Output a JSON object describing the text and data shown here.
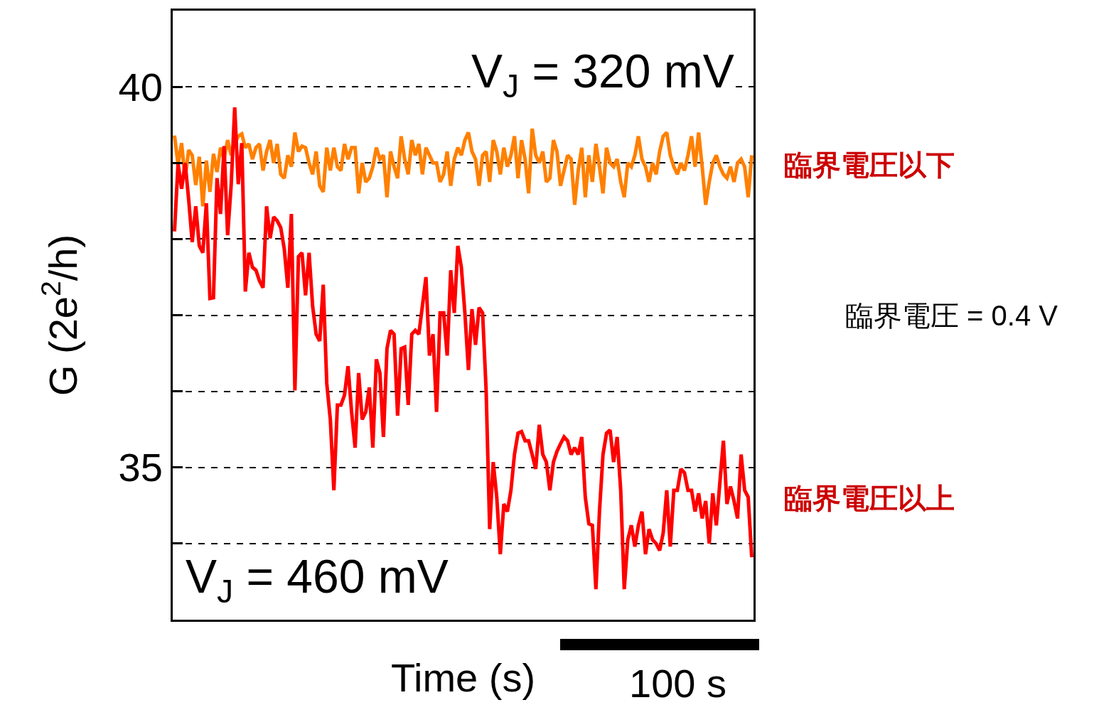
{
  "chart_data": {
    "type": "line",
    "xlabel": "Time (s)",
    "ylabel": "G (2e$^{2}$/h)",
    "categories": [
      null,
      null,
      null,
      null,
      null,
      null,
      null,
      null,
      null,
      null,
      null,
      null,
      null,
      null,
      null,
      null,
      null,
      null,
      null,
      null,
      null,
      null,
      null,
      null,
      null,
      null,
      null,
      null,
      null,
      null,
      null,
      null,
      null,
      null,
      null,
      null,
      null,
      null,
      null,
      null,
      null,
      null,
      null,
      null,
      null,
      null,
      null,
      null,
      null,
      null,
      null,
      null,
      null,
      null,
      null,
      null,
      null,
      null,
      null,
      null,
      null,
      null,
      null,
      null,
      null,
      null,
      null,
      null,
      null,
      null,
      null,
      null,
      null,
      null,
      null,
      null,
      null,
      null,
      null,
      null,
      null,
      null,
      null,
      null,
      null,
      null,
      null,
      null,
      null,
      null,
      null,
      null,
      null,
      null,
      null,
      null,
      null,
      null,
      null,
      null,
      null,
      null,
      null,
      null,
      null,
      null,
      null,
      null,
      null,
      null,
      null,
      null,
      null,
      null,
      null,
      null,
      null,
      null,
      null,
      null,
      null,
      null,
      null,
      null,
      null,
      null,
      null,
      null,
      null,
      null,
      null,
      null,
      null,
      null,
      null,
      null,
      null,
      null,
      null,
      null,
      null,
      null,
      null,
      null,
      null,
      null,
      null,
      null,
      null,
      null,
      null,
      null,
      null,
      null,
      null,
      null,
      null,
      null,
      null,
      null,
      null,
      null,
      null,
      null
    ],
    "series": [
      {
        "color": "#ff8000",
        "values": [
          39.36,
          38.98,
          39.26,
          38.8,
          39.17,
          39.1,
          38.71,
          39.08,
          38.43,
          39.03,
          38.62,
          39.12,
          38.88,
          39.2,
          39.05,
          39.3,
          39.1,
          39.25,
          39.35,
          39.38,
          39.2,
          39.25,
          39.05,
          39.2,
          39.25,
          38.9,
          39.15,
          39.3,
          39.0,
          39.25,
          38.85,
          38.8,
          39.1,
          38.95,
          39.4,
          39.15,
          39.22,
          39.2,
          39.0,
          38.85,
          39.15,
          38.7,
          38.62,
          39.2,
          38.9,
          39.2,
          38.95,
          38.9,
          39.25,
          39.05,
          39.2,
          39.2,
          38.6,
          39.0,
          38.75,
          38.8,
          38.95,
          39.2,
          39.05,
          39.1,
          38.55,
          39.15,
          38.95,
          38.8,
          39.35,
          39.05,
          38.85,
          39.3,
          39.1,
          39.25,
          38.85,
          39.2,
          39.1,
          39.0,
          39.0,
          38.75,
          38.85,
          39.15,
          38.7,
          39.05,
          39.2,
          39.1,
          39.3,
          39.4,
          39.15,
          39.05,
          38.7,
          39.1,
          39.15,
          38.75,
          39.3,
          39.15,
          38.85,
          39.2,
          38.95,
          39.1,
          39.35,
          38.8,
          39.3,
          39.05,
          38.6,
          39.45,
          39.1,
          39.0,
          39.15,
          38.75,
          38.8,
          39.3,
          39.15,
          38.7,
          38.9,
          39.1,
          39.05,
          38.45,
          38.9,
          39.2,
          38.55,
          39.1,
          38.75,
          39.25,
          38.95,
          38.6,
          39.2,
          39.0,
          38.95,
          39.05,
          38.75,
          38.55,
          39.0,
          38.95,
          39.1,
          39.35,
          39.05,
          38.95,
          38.75,
          39.0,
          38.85,
          39.15,
          39.35,
          39.4,
          39.1,
          38.95,
          38.85,
          39.0,
          38.9,
          39.1,
          39.35,
          38.95,
          39.4,
          38.95,
          38.45,
          38.75,
          39.0,
          39.1,
          38.95,
          38.85,
          38.8,
          38.95,
          38.75,
          39.0,
          39.05,
          38.95,
          38.55,
          39.1
        ]
      },
      {
        "color": "#ff0000",
        "values": [
          38.1,
          38.99,
          38.66,
          39.0,
          38.52,
          37.96,
          38.43,
          37.91,
          37.82,
          38.47,
          37.22,
          37.23,
          38.8,
          38.33,
          39.22,
          38.05,
          38.71,
          39.73,
          38.72,
          39.26,
          37.31,
          37.82,
          37.63,
          37.59,
          37.45,
          37.36,
          38.43,
          38.01,
          38.29,
          38.24,
          38.15,
          37.87,
          37.36,
          38.33,
          36.01,
          37.77,
          37.82,
          37.26,
          37.82,
          37.12,
          36.75,
          36.66,
          37.4,
          36.1,
          35.63,
          34.7,
          35.82,
          35.82,
          35.95,
          36.33,
          35.73,
          35.26,
          36.24,
          35.63,
          35.73,
          36.05,
          35.26,
          36.42,
          36.24,
          35.4,
          36.56,
          36.8,
          36.75,
          35.68,
          36.56,
          36.58,
          35.82,
          36.75,
          36.8,
          36.75,
          37.12,
          37.5,
          36.47,
          36.75,
          35.73,
          37.03,
          37.03,
          36.47,
          37.59,
          37.03,
          37.91,
          37.63,
          37.03,
          36.28,
          37.08,
          36.61,
          37.1,
          37.03,
          36.01,
          34.19,
          35.07,
          34.61,
          33.86,
          34.52,
          34.42,
          34.7,
          35.17,
          35.45,
          35.47,
          35.35,
          35.35,
          35.17,
          34.98,
          35.56,
          35.17,
          35.07,
          34.7,
          35.07,
          35.21,
          35.31,
          35.4,
          35.35,
          35.17,
          35.26,
          35.17,
          35.4,
          34.61,
          34.26,
          34.24,
          33.4,
          34.42,
          35.17,
          35.45,
          35.49,
          35.07,
          35.4,
          34.7,
          33.4,
          34.05,
          34.24,
          33.96,
          34.24,
          34.42,
          33.86,
          34.19,
          34.05,
          34.0,
          33.91,
          34.14,
          34.7,
          33.96,
          34.7,
          34.7,
          34.98,
          34.93,
          34.7,
          34.7,
          34.42,
          34.66,
          34.33,
          34.56,
          34.0,
          34.66,
          34.24,
          34.8,
          35.35,
          34.52,
          34.75,
          34.56,
          34.33,
          35.17,
          34.7,
          34.61,
          33.82
        ]
      }
    ],
    "ylim": [
      33,
      41
    ],
    "yticks": [
      {
        "value": 34,
        "label": null
      },
      35,
      {
        "value": 36,
        "label": null
      },
      {
        "value": 37,
        "label": null
      },
      {
        "value": 38,
        "label": null
      },
      {
        "value": 39,
        "label": null
      },
      40
    ],
    "grid": "y",
    "tick_labels": "y",
    "line_style": "solid",
    "marker": "none",
    "annotations": [
      "V$_{J}$ = 320 mV",
      "V$_{J}$ = 460 mV",
      "臨界電圧以下",
      "臨界電圧 = 0.4 V",
      "臨界電圧以上",
      "100 s"
    ]
  }
}
